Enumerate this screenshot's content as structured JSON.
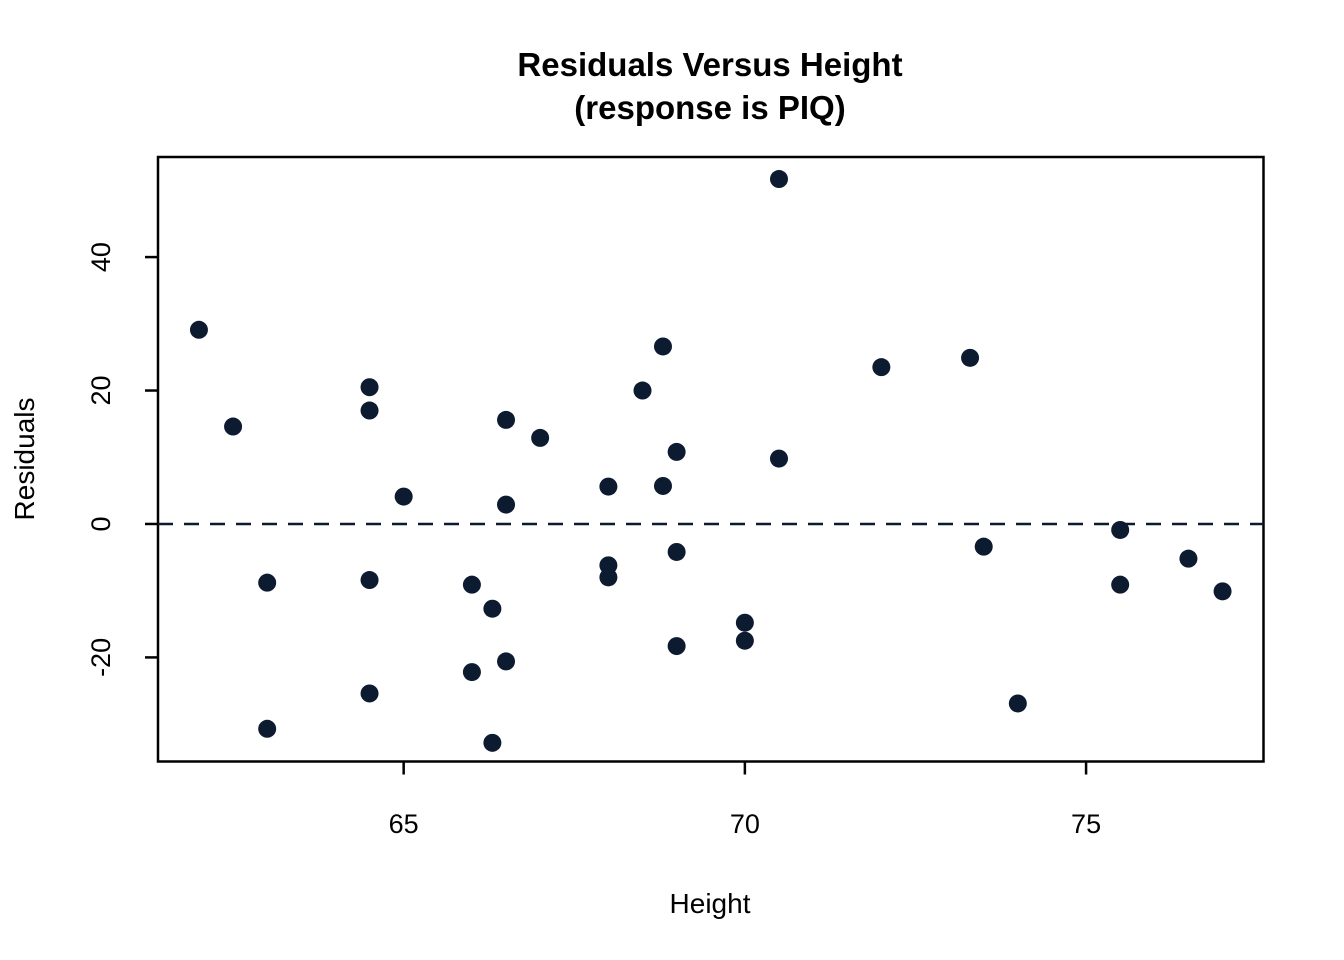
{
  "figure": {
    "title_line1": "Residuals Versus Height",
    "title_line2": "(response is PIQ)",
    "x_axis_label": "Height",
    "y_axis_label": "Residuals"
  },
  "colors": {
    "background": "#ffffff",
    "point": "#0d1b31",
    "axis": "#000000",
    "zero_line": "#0d1b31"
  },
  "chart_data": {
    "type": "scatter",
    "title": "Residuals Versus Height",
    "subtitle": "(response is PIQ)",
    "xlabel": "Height",
    "ylabel": "Residuals",
    "xlim": [
      61.4,
      77.6
    ],
    "ylim": [
      -35.6,
      55.0
    ],
    "x_ticks": [
      65,
      70,
      75
    ],
    "x_tick_labels": [
      "65",
      "70",
      "75"
    ],
    "y_ticks": [
      -20,
      0,
      20,
      40
    ],
    "y_tick_labels": [
      "-20",
      "0",
      "20",
      "40"
    ],
    "grid": false,
    "legend": null,
    "reference_line": {
      "y": 0,
      "style": "dashed"
    },
    "points": [
      [
        62.0,
        29.1
      ],
      [
        62.5,
        14.6
      ],
      [
        63.0,
        -8.8
      ],
      [
        63.0,
        -30.7
      ],
      [
        64.5,
        20.5
      ],
      [
        64.5,
        17.0
      ],
      [
        64.5,
        -8.4
      ],
      [
        64.5,
        -25.4
      ],
      [
        65.0,
        4.1
      ],
      [
        66.0,
        -9.1
      ],
      [
        66.0,
        -22.2
      ],
      [
        66.3,
        -12.7
      ],
      [
        66.3,
        -32.8
      ],
      [
        66.5,
        15.6
      ],
      [
        66.5,
        2.9
      ],
      [
        66.5,
        -20.6
      ],
      [
        67.0,
        12.9
      ],
      [
        68.0,
        5.6
      ],
      [
        68.0,
        -6.2
      ],
      [
        68.0,
        -8.0
      ],
      [
        68.5,
        20.0
      ],
      [
        68.8,
        26.6
      ],
      [
        68.8,
        5.7
      ],
      [
        69.0,
        10.8
      ],
      [
        69.0,
        -4.2
      ],
      [
        69.0,
        -18.3
      ],
      [
        70.0,
        -14.8
      ],
      [
        70.0,
        -17.5
      ],
      [
        70.5,
        51.7
      ],
      [
        70.5,
        9.8
      ],
      [
        72.0,
        23.5
      ],
      [
        73.3,
        24.9
      ],
      [
        73.5,
        -3.4
      ],
      [
        74.0,
        -26.9
      ],
      [
        75.5,
        -0.9
      ],
      [
        75.5,
        -9.1
      ],
      [
        76.5,
        -5.2
      ],
      [
        77.0,
        -10.1
      ]
    ]
  }
}
